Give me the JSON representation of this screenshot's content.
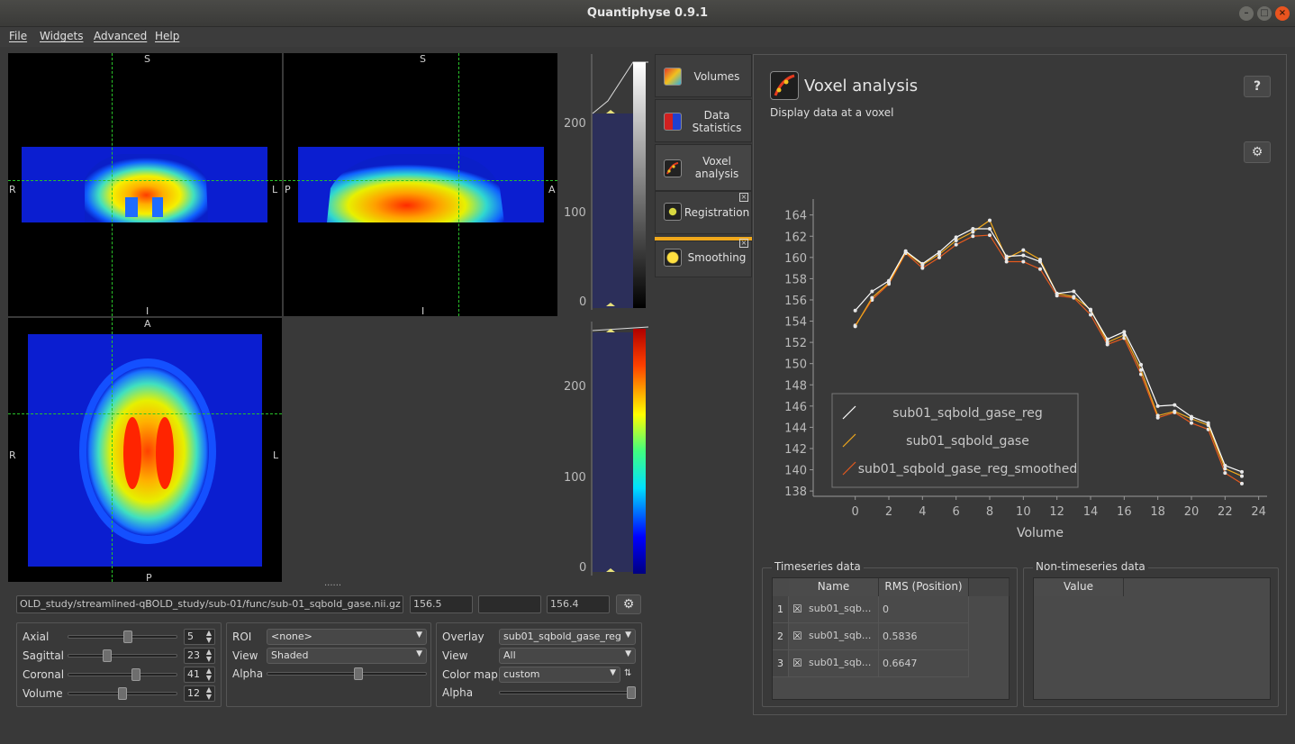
{
  "window": {
    "title": "Quantiphyse 0.9.1"
  },
  "menu": [
    "File",
    "Widgets",
    "Advanced",
    "Help"
  ],
  "views": {
    "coronal": {
      "top": "S",
      "bottom": "I",
      "left": "R",
      "right": "L"
    },
    "sagittal": {
      "top": "S",
      "bottom": "I",
      "left": "P",
      "right": "A"
    },
    "axial": {
      "top": "A",
      "bottom": "P",
      "left": "R",
      "right": "L"
    }
  },
  "histogram_upper": {
    "ticks": [
      "200",
      "100",
      "0"
    ]
  },
  "histogram_lower": {
    "ticks": [
      "200",
      "100",
      "0"
    ]
  },
  "file_bar": {
    "path": "OLD_study/streamlined-qBOLD_study/sub-01/func/sub-01_sqbold_gase.nii.gz",
    "value1": "156.5",
    "value2": "",
    "value3": "156.4"
  },
  "nav": {
    "axial": {
      "label": "Axial",
      "value": "5",
      "level": 0.55
    },
    "sagittal": {
      "label": "Sagittal",
      "value": "23",
      "level": 0.35
    },
    "coronal": {
      "label": "Coronal",
      "value": "41",
      "level": 0.63
    },
    "volume": {
      "label": "Volume",
      "value": "12",
      "level": 0.5
    }
  },
  "roi_panel": {
    "roi_label": "ROI",
    "roi_value": "<none>",
    "view_label": "View",
    "view_value": "Shaded",
    "alpha_label": "Alpha",
    "alpha_level": 0.58
  },
  "overlay_panel": {
    "overlay_label": "Overlay",
    "overlay_value": "sub01_sqbold_gase_reg",
    "view_label": "View",
    "view_value": "All",
    "cmap_label": "Color map",
    "cmap_value": "custom",
    "alpha_label": "Alpha",
    "alpha_level": 1.0
  },
  "side_tabs": [
    {
      "label": "Volumes",
      "icon": "volumes-icon"
    },
    {
      "label": "Data\nStatistics",
      "icon": "data-statistics-icon"
    },
    {
      "label": "Voxel\nanalysis",
      "icon": "voxel-analysis-icon"
    },
    {
      "label": "Registration",
      "icon": "registration-icon"
    },
    {
      "label": "Smoothing",
      "icon": "smoothing-icon"
    }
  ],
  "voxel_panel": {
    "title": "Voxel analysis",
    "subtitle": "Display data at a voxel",
    "help_label": "?"
  },
  "chart_data": {
    "type": "line",
    "xlabel": "Volume",
    "ylabel": "",
    "xlim": [
      -2.5,
      24.5
    ],
    "ylim": [
      137.5,
      165.5
    ],
    "x_ticks": [
      0,
      2,
      4,
      6,
      8,
      10,
      12,
      14,
      16,
      18,
      20,
      22,
      24
    ],
    "y_ticks": [
      138,
      140,
      142,
      144,
      146,
      148,
      150,
      152,
      154,
      156,
      158,
      160,
      162,
      164
    ],
    "legend_position": "lower-left",
    "x": [
      0,
      1,
      2,
      3,
      4,
      5,
      6,
      7,
      8,
      9,
      10,
      11,
      12,
      13,
      14,
      15,
      16,
      17,
      18,
      19,
      20,
      21,
      22,
      23
    ],
    "series": [
      {
        "name": "sub01_sqbold_gase_reg",
        "color": "#ffffff",
        "values": [
          155.0,
          156.8,
          157.8,
          160.6,
          159.4,
          160.5,
          161.9,
          162.7,
          162.7,
          160.1,
          160.2,
          159.6,
          156.6,
          156.8,
          155.0,
          152.3,
          153.0,
          149.9,
          146.0,
          146.1,
          145.0,
          144.4,
          140.4,
          139.8
        ]
      },
      {
        "name": "sub01_sqbold_gase",
        "color": "#f0a81c",
        "values": [
          153.5,
          156.2,
          157.6,
          160.5,
          159.3,
          160.3,
          161.6,
          162.4,
          163.5,
          159.9,
          160.7,
          159.8,
          156.6,
          156.3,
          155.1,
          152.0,
          152.7,
          149.4,
          145.1,
          145.5,
          144.8,
          144.2,
          140.1,
          139.4
        ]
      },
      {
        "name": "sub01_sqbold_gase_reg_smoothed",
        "color": "#e65a1e",
        "values": [
          153.6,
          156.0,
          157.5,
          160.4,
          159.0,
          160.0,
          161.2,
          162.0,
          162.1,
          159.6,
          159.6,
          158.9,
          156.4,
          156.2,
          154.6,
          151.8,
          152.4,
          149.0,
          144.9,
          145.4,
          144.4,
          143.8,
          139.7,
          138.7
        ]
      }
    ]
  },
  "timeseries_table": {
    "group_title": "Timeseries data",
    "headers": [
      "Name",
      "RMS (Position)"
    ],
    "rows": [
      {
        "index": "1",
        "checked": "☒",
        "name": "sub01_sqb...",
        "rms": "0"
      },
      {
        "index": "2",
        "checked": "☒",
        "name": "sub01_sqb...",
        "rms": "0.5836"
      },
      {
        "index": "3",
        "checked": "☒",
        "name": "sub01_sqb...",
        "rms": "0.6647"
      }
    ]
  },
  "non_timeseries_table": {
    "group_title": "Non-timeseries data",
    "headers": [
      "Value"
    ]
  },
  "colors": {
    "accent": "#f0a81c",
    "crosshair": "#29c329"
  }
}
